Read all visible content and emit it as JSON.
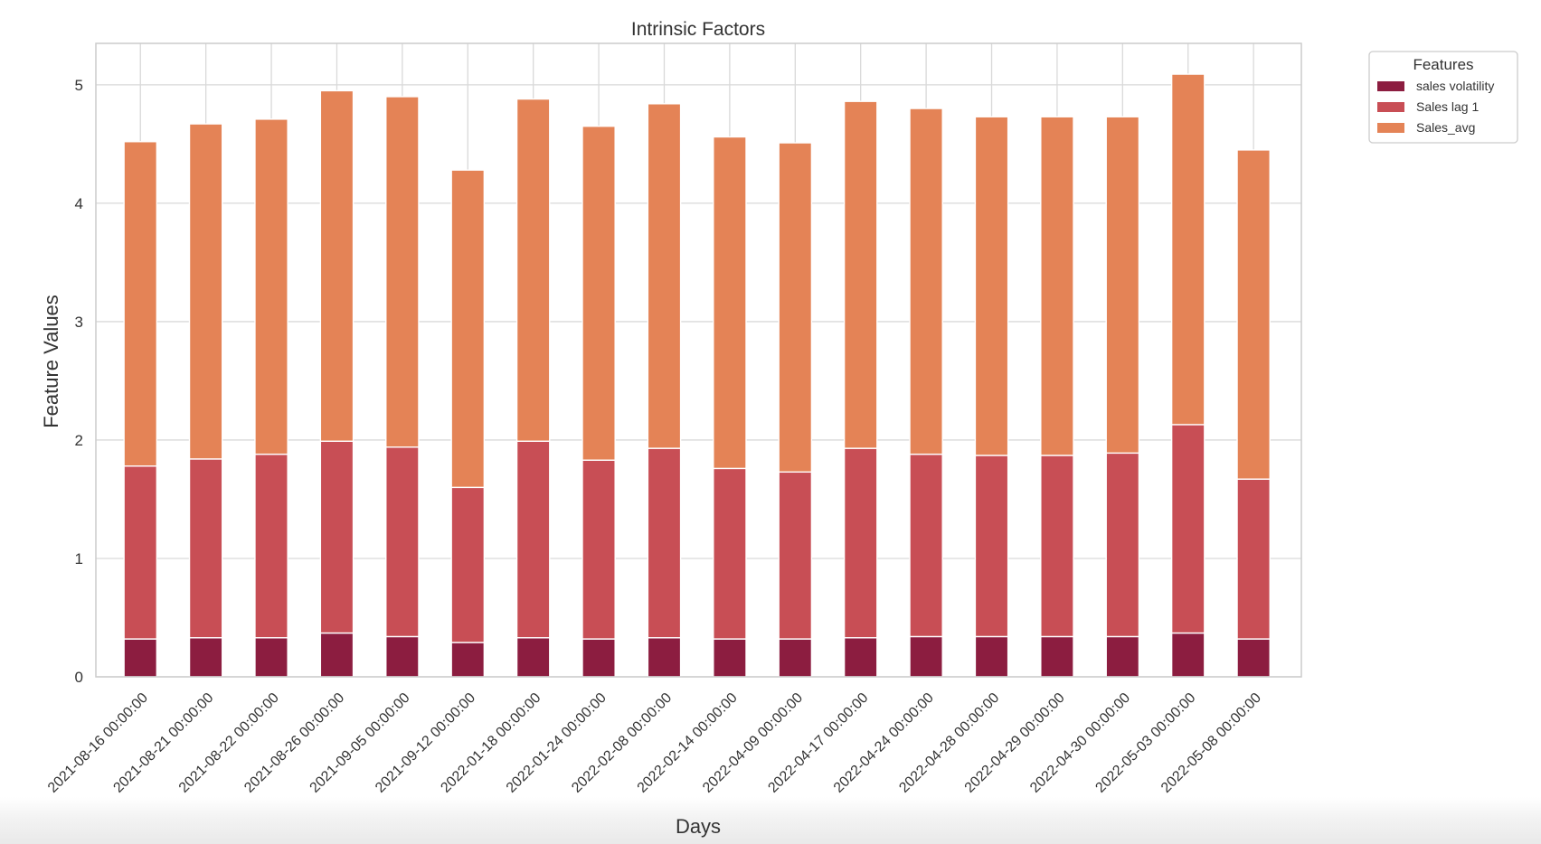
{
  "chart_data": {
    "type": "bar",
    "stacked": true,
    "title": "Intrinsic Factors",
    "xlabel": "Days",
    "ylabel": "Feature Values",
    "ylim": [
      0,
      5.35
    ],
    "yticks": [
      0,
      1,
      2,
      3,
      4,
      5
    ],
    "grid": true,
    "legend": {
      "title": "Features",
      "placement": "outside-top-right"
    },
    "categories": [
      "2021-08-16 00:00:00",
      "2021-08-21 00:00:00",
      "2021-08-22 00:00:00",
      "2021-08-26 00:00:00",
      "2021-09-05 00:00:00",
      "2021-09-12 00:00:00",
      "2022-01-18 00:00:00",
      "2022-01-24 00:00:00",
      "2022-02-08 00:00:00",
      "2022-02-14 00:00:00",
      "2022-04-09 00:00:00",
      "2022-04-17 00:00:00",
      "2022-04-24 00:00:00",
      "2022-04-28 00:00:00",
      "2022-04-29 00:00:00",
      "2022-04-30 00:00:00",
      "2022-05-03 00:00:00",
      "2022-05-08 00:00:00"
    ],
    "series": [
      {
        "name": "sales volatility",
        "color": "#8c1d40",
        "values": [
          0.32,
          0.33,
          0.33,
          0.37,
          0.34,
          0.29,
          0.33,
          0.32,
          0.33,
          0.32,
          0.32,
          0.33,
          0.34,
          0.34,
          0.34,
          0.34,
          0.37,
          0.32
        ]
      },
      {
        "name": "Sales lag 1",
        "color": "#c84e55",
        "values": [
          1.46,
          1.51,
          1.55,
          1.62,
          1.6,
          1.31,
          1.66,
          1.51,
          1.6,
          1.44,
          1.41,
          1.6,
          1.54,
          1.53,
          1.53,
          1.55,
          1.76,
          1.35
        ]
      },
      {
        "name": "Sales_avg",
        "color": "#e48356",
        "values": [
          2.74,
          2.83,
          2.83,
          2.96,
          2.96,
          2.68,
          2.89,
          2.82,
          2.91,
          2.8,
          2.78,
          2.93,
          2.92,
          2.86,
          2.86,
          2.84,
          2.96,
          2.78
        ]
      }
    ]
  }
}
